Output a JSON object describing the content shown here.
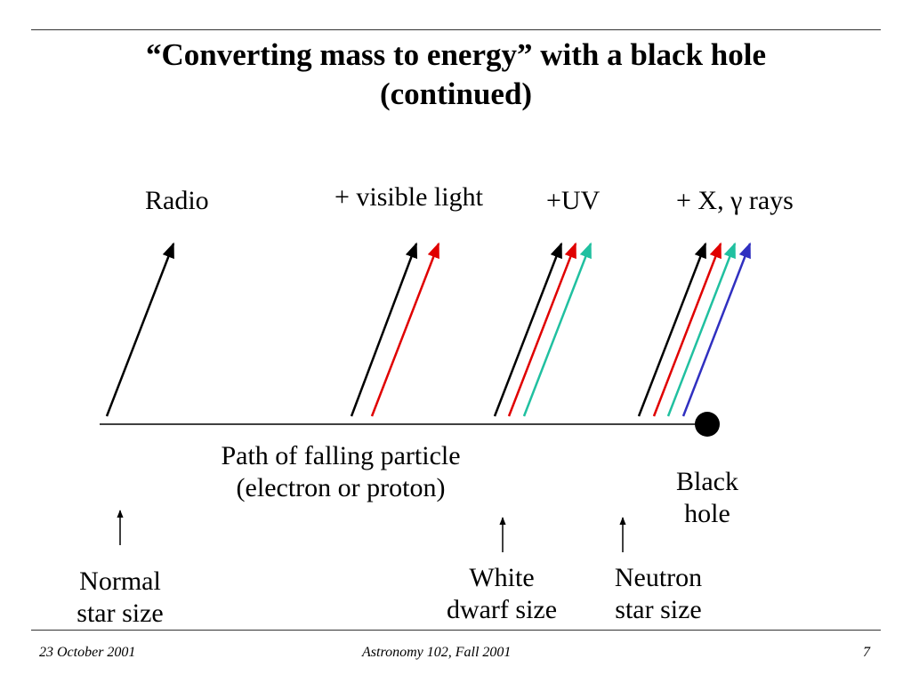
{
  "slide": {
    "title_line1": "“Converting mass to energy” with a black hole",
    "title_line2": "(continued)"
  },
  "emission": {
    "radio": "Radio",
    "visible": "+ visible light",
    "uv": "+UV",
    "xgamma": "+ X, γ rays"
  },
  "path": {
    "line1": "Path of falling particle",
    "line2": "(electron or proton)"
  },
  "black_hole": {
    "line1": "Black",
    "line2": "hole"
  },
  "sizes": {
    "normal_line1": "Normal",
    "normal_line2": "star size",
    "white_line1": "White",
    "white_line2": "dwarf size",
    "neutron_line1": "Neutron",
    "neutron_line2": "star size"
  },
  "footer": {
    "date": "23 October 2001",
    "course": "Astronomy 102, Fall 2001",
    "page": "7"
  },
  "colors": {
    "radio": "#000000",
    "visible": "#e00000",
    "uv": "#20c0a0",
    "xgamma": "#3030c0"
  }
}
